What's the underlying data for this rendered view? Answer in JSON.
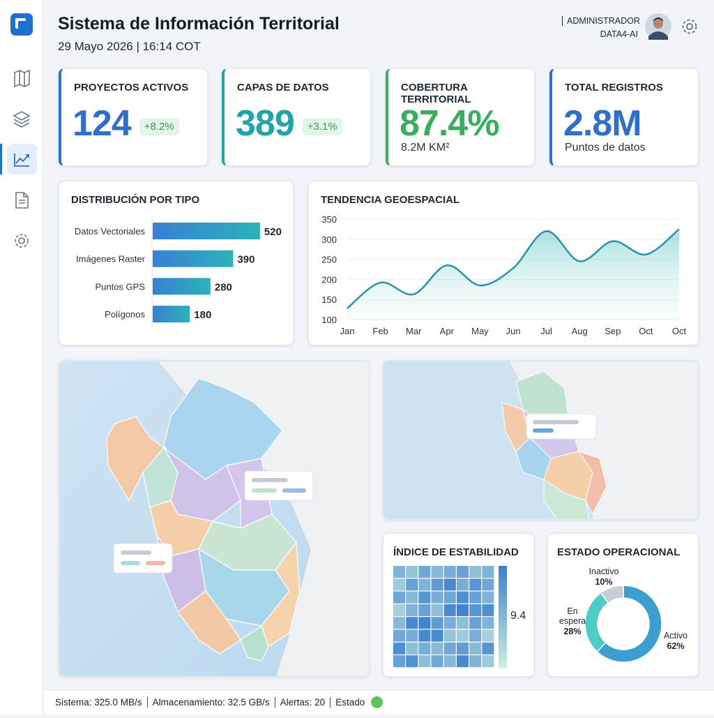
{
  "header": {
    "title": "Sistema de Información Territorial",
    "datetime": "29 Mayo 2026 | 16:14 COT",
    "role": "ADMINISTRADOR",
    "user": "DATA4-AI"
  },
  "kpis": [
    {
      "label": "PROYECTOS ACTIVOS",
      "value": "124",
      "change": "+8.2%"
    },
    {
      "label": "CAPAS DE DATOS",
      "value": "389",
      "change": "+3.1%"
    },
    {
      "label": "COBERTURA TERRITORIAL",
      "value": "87.4%",
      "note": "8.2M KM²"
    },
    {
      "label": "TOTAL REGISTROS",
      "value": "2.8M",
      "note": "Puntos de datos"
    }
  ],
  "chart_data": [
    {
      "type": "bar",
      "orientation": "horizontal",
      "title": "DISTRIBUCIÓN POR TIPO",
      "categories": [
        "Datos Vectoriales",
        "Imágenes Raster",
        "Puntos GPS",
        "Polígonos"
      ],
      "values": [
        520,
        390,
        280,
        180
      ],
      "colors": [
        "#3a7fd4",
        "#2bb3b8"
      ]
    },
    {
      "type": "line",
      "title": "TENDENCIA GEOESPACIAL",
      "categories": [
        "Jan",
        "Feb",
        "Mar",
        "Apr",
        "May",
        "Jun",
        "Jul",
        "Aug",
        "Sep",
        "Oct",
        "Oct"
      ],
      "values": [
        128,
        192,
        163,
        235,
        185,
        228,
        320,
        245,
        295,
        262,
        325
      ],
      "ylim": [
        100,
        350
      ],
      "yticks": [
        100,
        150,
        200,
        250,
        300,
        350
      ],
      "grid": true,
      "color": "#2f93b4"
    },
    {
      "type": "heatmap",
      "title": "ÍNDICE DE ESTABILIDAD",
      "colorbar_max": 9.4,
      "values": [
        [
          5.0,
          3.5,
          6.0,
          4.5,
          5.5,
          6.5,
          4.0,
          5.0
        ],
        [
          3.0,
          6.5,
          5.0,
          7.0,
          8.5,
          5.5,
          7.5,
          6.0
        ],
        [
          6.0,
          4.5,
          7.5,
          5.5,
          6.0,
          8.0,
          6.5,
          5.0
        ],
        [
          2.5,
          5.0,
          6.5,
          4.0,
          8.5,
          9.0,
          7.5,
          8.0
        ],
        [
          4.5,
          8.5,
          9.0,
          7.0,
          5.5,
          4.0,
          6.5,
          5.0
        ],
        [
          6.0,
          5.5,
          8.5,
          8.5,
          3.5,
          3.0,
          5.5,
          2.5
        ],
        [
          8.0,
          4.0,
          5.5,
          4.5,
          6.0,
          7.0,
          4.5,
          7.5
        ],
        [
          6.5,
          8.0,
          4.0,
          6.0,
          4.5,
          8.5,
          5.0,
          3.0
        ]
      ]
    },
    {
      "type": "donut",
      "title": "ESTADO OPERACIONAL",
      "categories": [
        "Activo",
        "En espera",
        "Inactivo"
      ],
      "values": [
        62,
        28,
        10
      ],
      "value_labels": [
        "62%",
        "28%",
        "10%"
      ],
      "colors": [
        "#3a9fd0",
        "#4fcdc4",
        "#c6cdd4"
      ]
    }
  ],
  "footer": {
    "items": [
      "Sistema: 325.0 MB/s",
      "Almacenamiento: 32.5 GB/s",
      "Alertas: 20",
      "Estado"
    ]
  }
}
